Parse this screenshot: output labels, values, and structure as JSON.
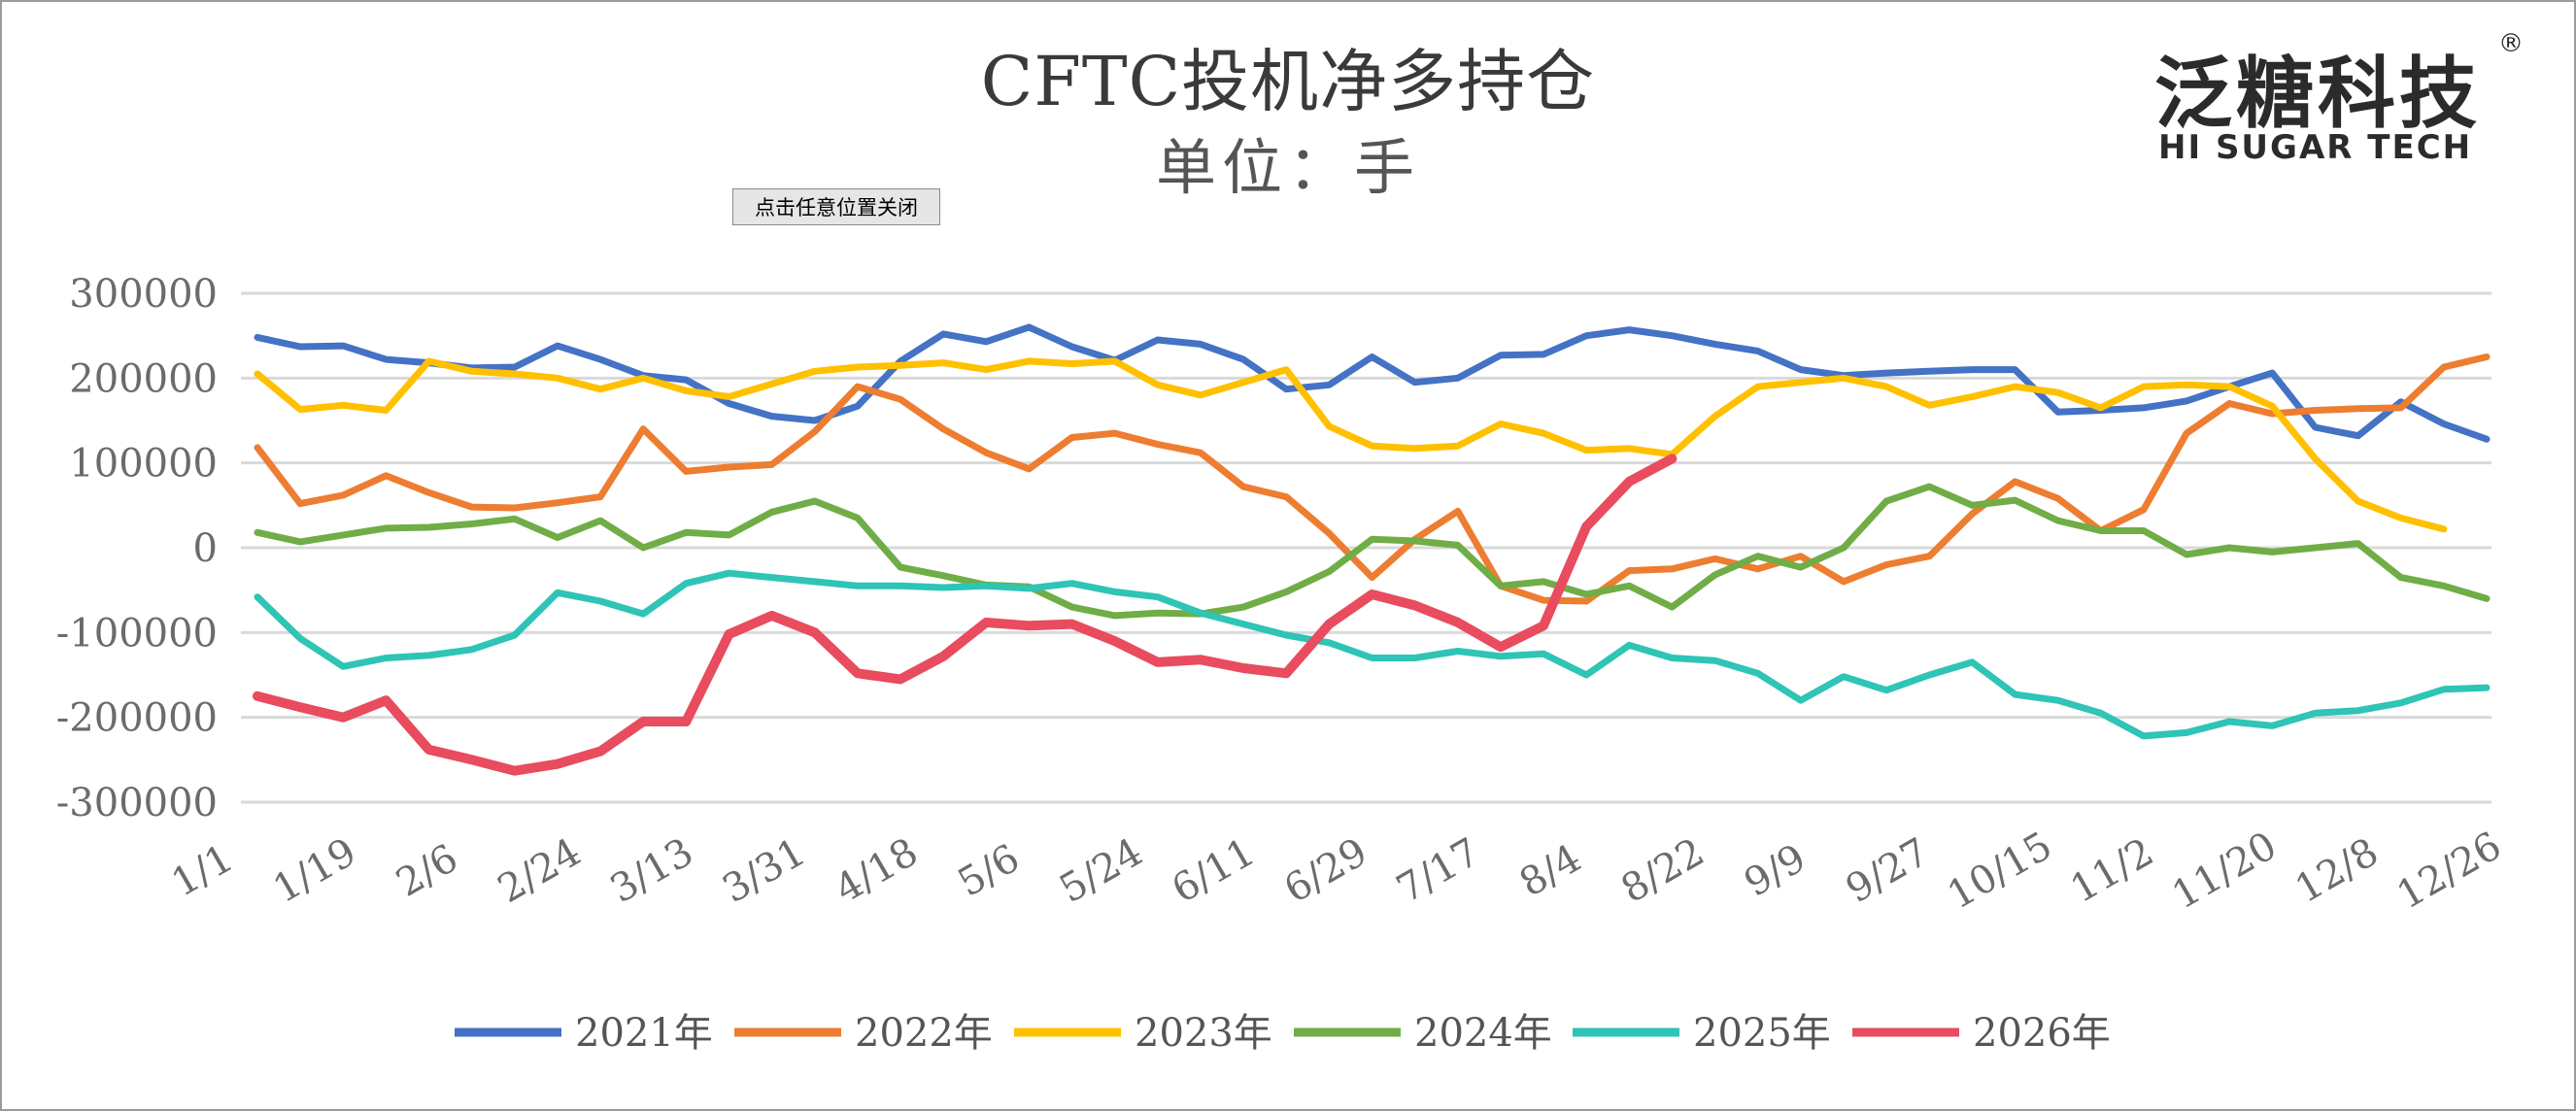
{
  "title": "CFTC投机净多持仓",
  "subtitle": "单位：手",
  "close_button": "点击任意位置关闭",
  "logo": {
    "cn": "泛糖科技",
    "en": "HI SUGAR TECH",
    "reg": "®"
  },
  "chart_data": {
    "type": "line",
    "title": "CFTC投机净多持仓",
    "ylabel": "单位：手",
    "ylim": [
      -300000,
      300000
    ],
    "y_ticks": [
      300000,
      200000,
      100000,
      0,
      -100000,
      -200000,
      -300000
    ],
    "x_ticks": [
      "1/1",
      "1/19",
      "2/6",
      "2/24",
      "3/13",
      "3/31",
      "4/18",
      "5/6",
      "5/24",
      "6/11",
      "6/29",
      "7/17",
      "8/4",
      "8/22",
      "9/9",
      "9/27",
      "10/15",
      "11/2",
      "11/20",
      "12/8",
      "12/26"
    ],
    "grid": true,
    "legend_position": "bottom",
    "series": [
      {
        "name": "2021年",
        "color": "#4472c4",
        "values": [
          248000,
          237000,
          238000,
          222000,
          218000,
          212000,
          213000,
          238000,
          222000,
          203000,
          198000,
          170000,
          155000,
          150000,
          167000,
          220000,
          252000,
          243000,
          260000,
          237000,
          221000,
          245000,
          240000,
          222000,
          187000,
          192000,
          225000,
          195000,
          200000,
          227000,
          228000,
          250000,
          257000,
          250000,
          240000,
          232000,
          210000,
          203000,
          206000,
          208000,
          210000,
          210000,
          160000,
          162000,
          165000,
          173000,
          190000,
          206000,
          142000,
          132000,
          172000,
          146000,
          128000
        ]
      },
      {
        "name": "2022年",
        "color": "#ed7d31",
        "values": [
          118000,
          52000,
          62000,
          85000,
          65000,
          48000,
          47000,
          53000,
          60000,
          140000,
          90000,
          95000,
          98000,
          137000,
          190000,
          175000,
          140000,
          112000,
          93000,
          130000,
          135000,
          122000,
          112000,
          72000,
          60000,
          17000,
          -35000,
          10000,
          43000,
          -45000,
          -62000,
          -63000,
          -27000,
          -25000,
          -13000,
          -25000,
          -10000,
          -40000,
          -20000,
          -10000,
          40000,
          78000,
          58000,
          20000,
          45000,
          135000,
          170000,
          158000,
          162000,
          164000,
          165000,
          213000,
          225000
        ]
      },
      {
        "name": "2023年",
        "color": "#ffc000",
        "values": [
          205000,
          163000,
          168000,
          162000,
          220000,
          208000,
          205000,
          200000,
          187000,
          200000,
          185000,
          178000,
          193000,
          208000,
          213000,
          215000,
          218000,
          210000,
          220000,
          217000,
          220000,
          192000,
          180000,
          195000,
          210000,
          143000,
          120000,
          117000,
          120000,
          146000,
          135000,
          115000,
          117000,
          110000,
          155000,
          190000,
          195000,
          200000,
          190000,
          168000,
          178000,
          190000,
          183000,
          165000,
          190000,
          192000,
          190000,
          167000,
          105000,
          55000,
          35000,
          22000
        ]
      },
      {
        "name": "2024年",
        "color": "#70ad47",
        "values": [
          18000,
          7000,
          15000,
          23000,
          24000,
          28000,
          34000,
          12000,
          32000,
          0,
          18000,
          15000,
          42000,
          55000,
          35000,
          -23000,
          -33000,
          -44000,
          -46000,
          -70000,
          -80000,
          -77000,
          -78000,
          -70000,
          -52000,
          -28000,
          10000,
          8000,
          3000,
          -45000,
          -40000,
          -55000,
          -45000,
          -70000,
          -32000,
          -10000,
          -23000,
          0,
          55000,
          72000,
          50000,
          56000,
          32000,
          20000,
          20000,
          -8000,
          0,
          -5000,
          0,
          5000,
          -35000,
          -45000,
          -60000
        ]
      },
      {
        "name": "2025年",
        "color": "#2ec4b6",
        "values": [
          -58000,
          -107000,
          -140000,
          -130000,
          -127000,
          -120000,
          -103000,
          -53000,
          -63000,
          -78000,
          -42000,
          -30000,
          -35000,
          -40000,
          -45000,
          -45000,
          -47000,
          -45000,
          -48000,
          -42000,
          -52000,
          -58000,
          -77000,
          -90000,
          -103000,
          -112000,
          -130000,
          -130000,
          -122000,
          -128000,
          -125000,
          -150000,
          -115000,
          -130000,
          -133000,
          -148000,
          -180000,
          -152000,
          -168000,
          -150000,
          -135000,
          -173000,
          -180000,
          -195000,
          -222000,
          -218000,
          -205000,
          -210000,
          -195000,
          -192000,
          -183000,
          -167000,
          -165000
        ]
      },
      {
        "name": "2026年",
        "color": "#e84c5e",
        "values": [
          -175000,
          -188000,
          -200000,
          -180000,
          -238000,
          -250000,
          -263000,
          -255000,
          -240000,
          -205000,
          -205000,
          -102000,
          -80000,
          -100000,
          -148000,
          -155000,
          -128000,
          -88000,
          -92000,
          -90000,
          -110000,
          -135000,
          -132000,
          -142000,
          -148000,
          -90000,
          -55000,
          -68000,
          -88000,
          -117000,
          -92000,
          25000,
          78000,
          105000
        ]
      }
    ]
  }
}
